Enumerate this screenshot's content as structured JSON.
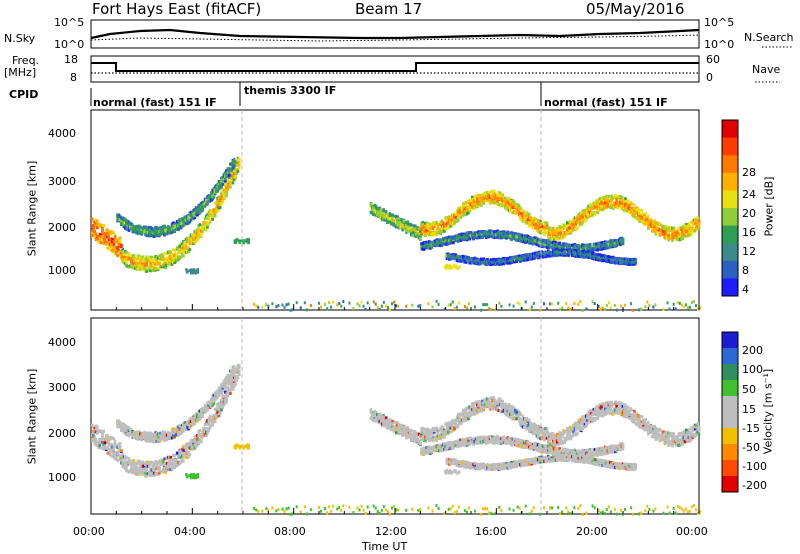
{
  "header": {
    "station": "Fort Hays East (fitACF)",
    "beam": "Beam 17",
    "date": "05/May/2016"
  },
  "panels": {
    "nsky_label": "N.Sky",
    "nsky_ticks": [
      "10^5",
      "10^0"
    ],
    "nsearch_label": "N.Search",
    "nsearch_ticks": [
      "10^5",
      "10^0"
    ],
    "freq_label": "Freq.",
    "freq_unit": "[MHz]",
    "freq_ticks": [
      "18",
      "8"
    ],
    "nave_label": "Nave",
    "nave_ticks": [
      "60",
      "0"
    ],
    "cpid_label": "CPID",
    "cpid_modes": [
      "normal (fast) 151 IF",
      "themis 3300 IF",
      "normal (fast) 151 IF"
    ]
  },
  "colors": {
    "power_scale": [
      "#1d1dff",
      "#2b5fc2",
      "#3c8a8a",
      "#2e9e55",
      "#8fcf3a",
      "#e8e010",
      "#ffb000",
      "#ff7a00",
      "#ff3b00",
      "#e00000"
    ],
    "velocity_scale": [
      "#1c1cd6",
      "#2a6ad2",
      "#2f8f60",
      "#40c030",
      "#bebebe",
      "#bebebe",
      "#f2c000",
      "#ff8a00",
      "#ff4a00",
      "#e00000"
    ]
  },
  "chart_data": [
    {
      "type": "heatmap",
      "name": "Power",
      "ylabel": "Slant Range [km]",
      "ylim": [
        180,
        4500
      ],
      "yticks": [
        1000,
        2000,
        3000,
        4000
      ],
      "colorbar_label": "Power [dB]",
      "colorbar_ticks": [
        "28",
        "24",
        "20",
        "16",
        "12",
        "8",
        "4"
      ],
      "colorbar_range": [
        0,
        32
      ]
    },
    {
      "type": "heatmap",
      "name": "Velocity",
      "ylabel": "Slant Range [km]",
      "ylim": [
        180,
        4500
      ],
      "yticks": [
        1000,
        2000,
        3000,
        4000
      ],
      "colorbar_label": "Velocity [m s⁻¹]",
      "colorbar_ticks": [
        "200",
        "100",
        "50",
        "15",
        "-15",
        "-50",
        "-100",
        "-200"
      ]
    }
  ],
  "xaxis": {
    "label": "Time UT",
    "ticks": [
      "00:00",
      "04:00",
      "08:00",
      "12:00",
      "16:00",
      "20:00",
      "00:00"
    ],
    "range_hours": [
      0,
      24
    ]
  },
  "cpid_change_hours": [
    6,
    18
  ]
}
